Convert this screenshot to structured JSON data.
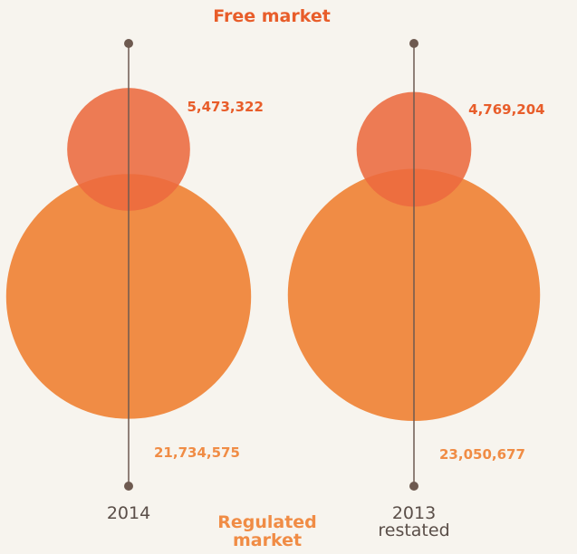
{
  "chart_data": {
    "type": "bubble",
    "categories": [
      "2014",
      "2013 restated"
    ],
    "series": [
      {
        "name": "Free market",
        "color": "#ec6a3f",
        "values": [
          5473322,
          4769204
        ],
        "value_labels": [
          "5,473,322",
          "4,769,204"
        ]
      },
      {
        "name": "Regulated market",
        "color": "#f08c45",
        "values": [
          21734575,
          23050677
        ],
        "value_labels": [
          "21,734,575",
          "23,050,677"
        ]
      }
    ]
  }
}
